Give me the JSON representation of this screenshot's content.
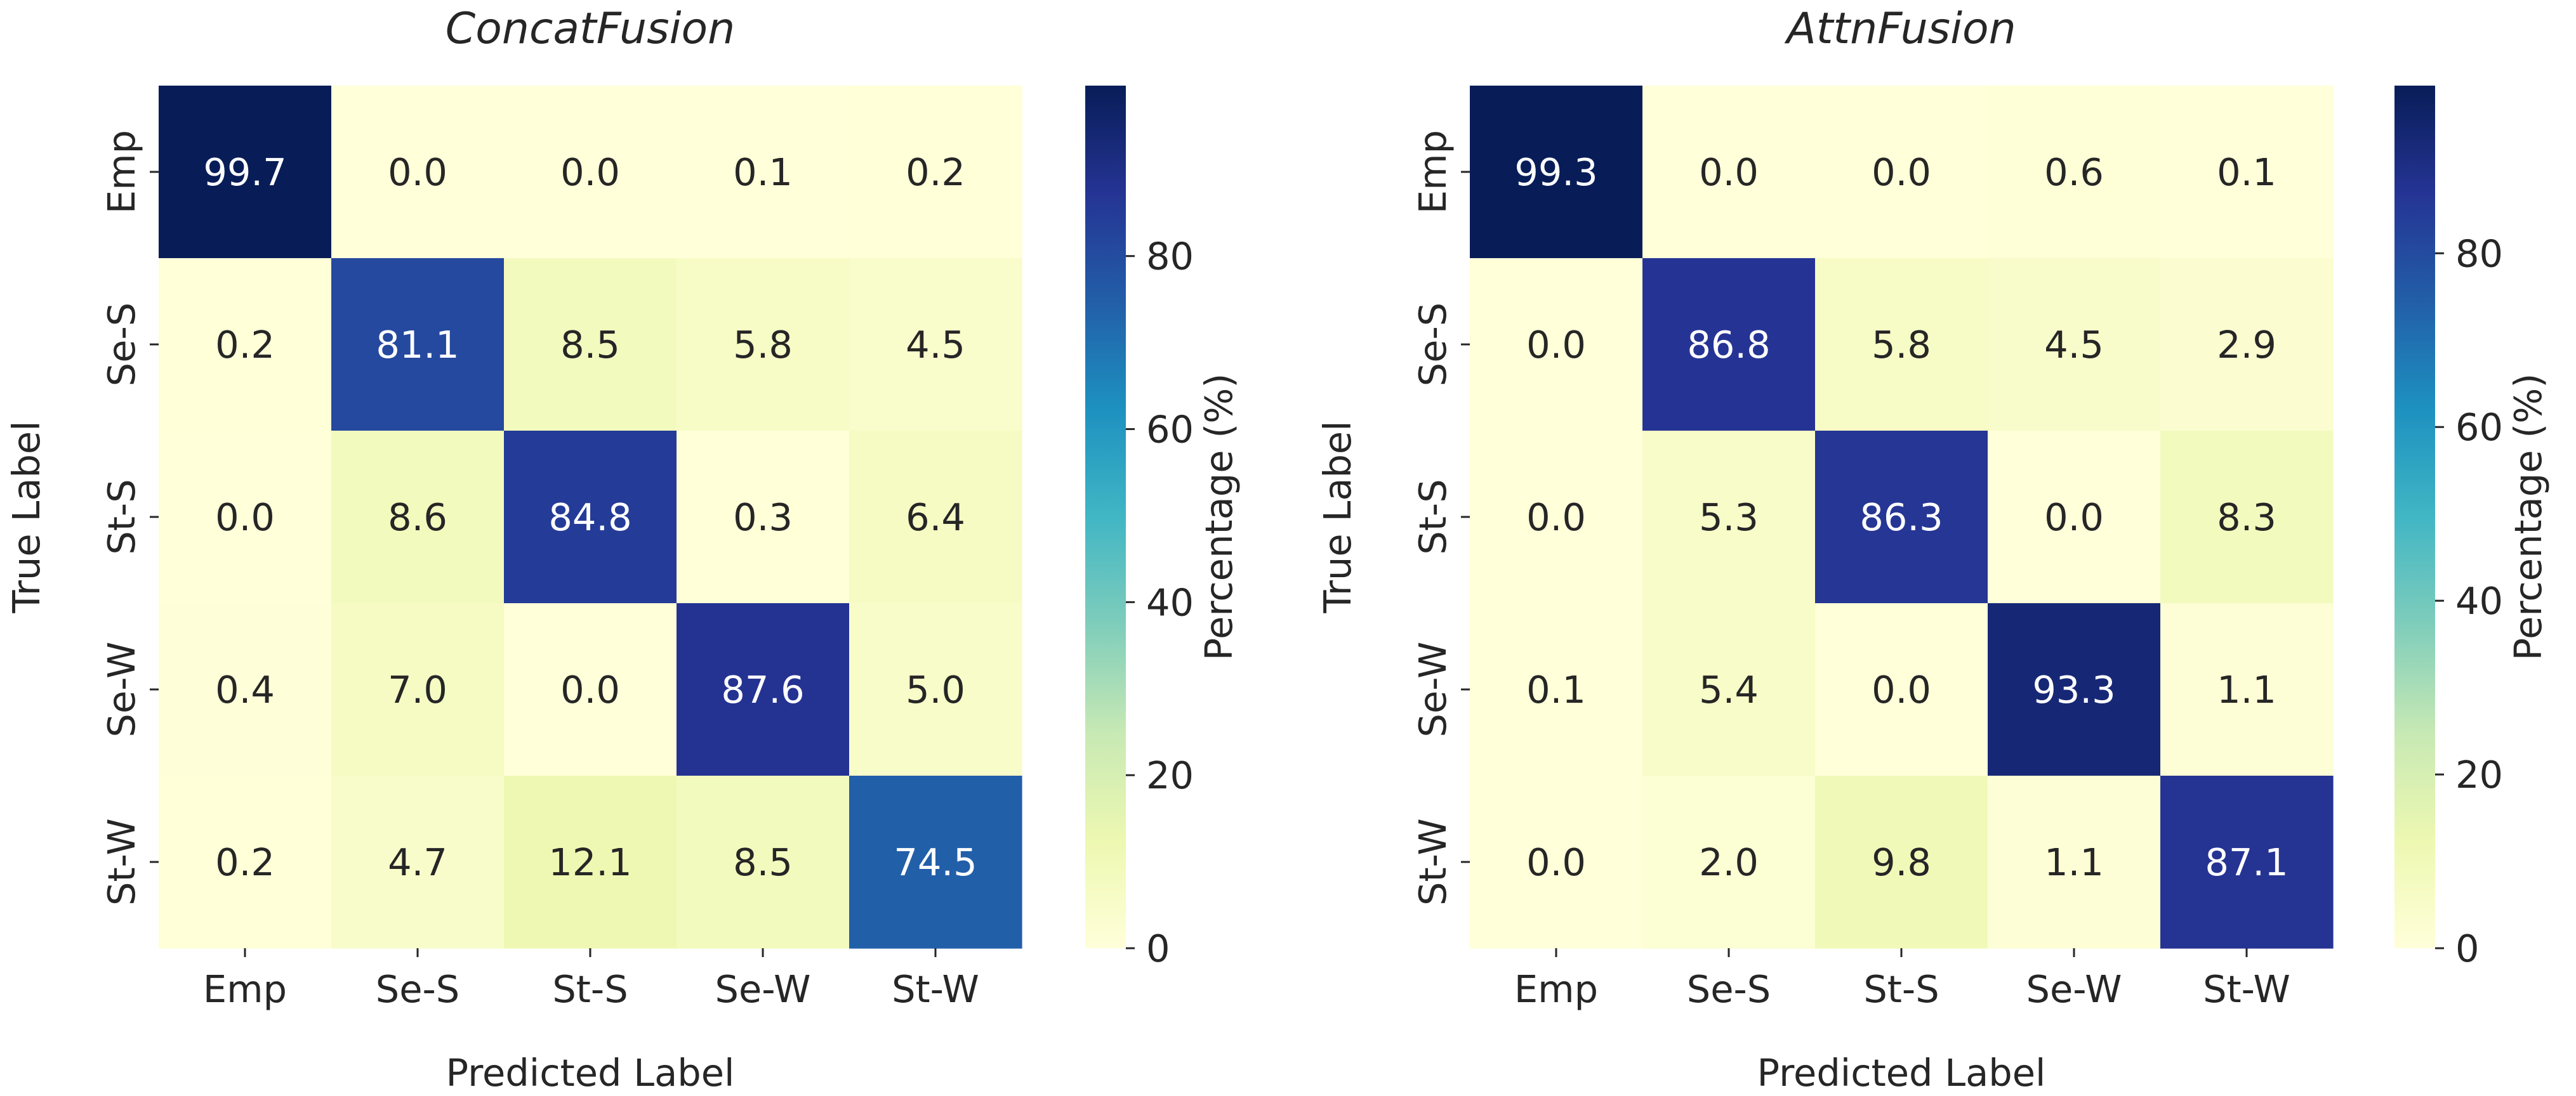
{
  "chart_data": [
    {
      "type": "heatmap",
      "title": "ConcatFusion",
      "xlabel": "Predicted Label",
      "ylabel": "True Label",
      "x_categories": [
        "Emp",
        "Se-S",
        "St-S",
        "Se-W",
        "St-W"
      ],
      "y_categories": [
        "Emp",
        "Se-S",
        "St-S",
        "Se-W",
        "St-W"
      ],
      "values": [
        [
          99.7,
          0.0,
          0.0,
          0.1,
          0.2
        ],
        [
          0.2,
          81.1,
          8.5,
          5.8,
          4.5
        ],
        [
          0.0,
          8.6,
          84.8,
          0.3,
          6.4
        ],
        [
          0.4,
          7.0,
          0.0,
          87.6,
          5.0
        ],
        [
          0.2,
          4.7,
          12.1,
          8.5,
          74.5
        ]
      ],
      "colorbar": {
        "label": "Percentage (%)",
        "range": [
          0,
          99.7
        ],
        "ticks": [
          0,
          20,
          40,
          60,
          80
        ],
        "colormap": "YlGnBu"
      }
    },
    {
      "type": "heatmap",
      "title": "AttnFusion",
      "xlabel": "Predicted Label",
      "ylabel": "True Label",
      "x_categories": [
        "Emp",
        "Se-S",
        "St-S",
        "Se-W",
        "St-W"
      ],
      "y_categories": [
        "Emp",
        "Se-S",
        "St-S",
        "Se-W",
        "St-W"
      ],
      "values": [
        [
          99.3,
          0.0,
          0.0,
          0.6,
          0.1
        ],
        [
          0.0,
          86.8,
          5.8,
          4.5,
          2.9
        ],
        [
          0.0,
          5.3,
          86.3,
          0.0,
          8.3
        ],
        [
          0.1,
          5.4,
          0.0,
          93.3,
          1.1
        ],
        [
          0.0,
          2.0,
          9.8,
          1.1,
          87.1
        ]
      ],
      "colorbar": {
        "label": "Percentage (%)",
        "range": [
          0,
          99.3
        ],
        "ticks": [
          0,
          20,
          40,
          60,
          80
        ],
        "colormap": "YlGnBu"
      }
    }
  ]
}
